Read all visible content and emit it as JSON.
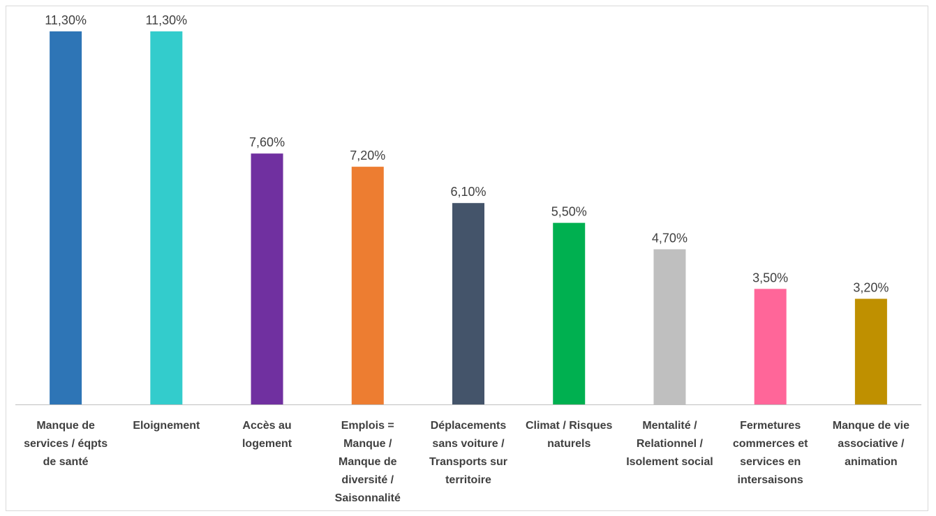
{
  "chart_data": {
    "type": "bar",
    "title": "",
    "xlabel": "",
    "ylabel": "",
    "ylim": [
      0,
      11.3
    ],
    "grid": false,
    "legend": "none",
    "categories": [
      [
        "Manque de",
        "services / éqpts",
        "de santé"
      ],
      [
        "Eloignement"
      ],
      [
        "Accès au",
        "logement"
      ],
      [
        "Emplois =",
        "Manque /",
        "Manque de",
        "diversité /",
        "Saisonnalité"
      ],
      [
        "Déplacements",
        "sans voiture /",
        "Transports sur",
        "territoire"
      ],
      [
        "Climat / Risques",
        "naturels"
      ],
      [
        "Mentalité /",
        "Relationnel /",
        "Isolement social"
      ],
      [
        "Fermetures",
        "commerces et",
        "services en",
        "intersaisons"
      ],
      [
        "Manque de vie",
        "associative /",
        "animation"
      ]
    ],
    "values": [
      11.3,
      11.3,
      7.6,
      7.2,
      6.1,
      5.5,
      4.7,
      3.5,
      3.2
    ],
    "value_labels": [
      "11,30%",
      "11,30%",
      "7,60%",
      "7,20%",
      "6,10%",
      "5,50%",
      "4,70%",
      "3,50%",
      "3,20%"
    ],
    "colors": [
      "#2e75b6",
      "#33cccc",
      "#7030a0",
      "#ed7d31",
      "#44546a",
      "#00b050",
      "#bfbfbf",
      "#ff6699",
      "#bf9000"
    ],
    "axis_color": "#bfbfbf"
  }
}
